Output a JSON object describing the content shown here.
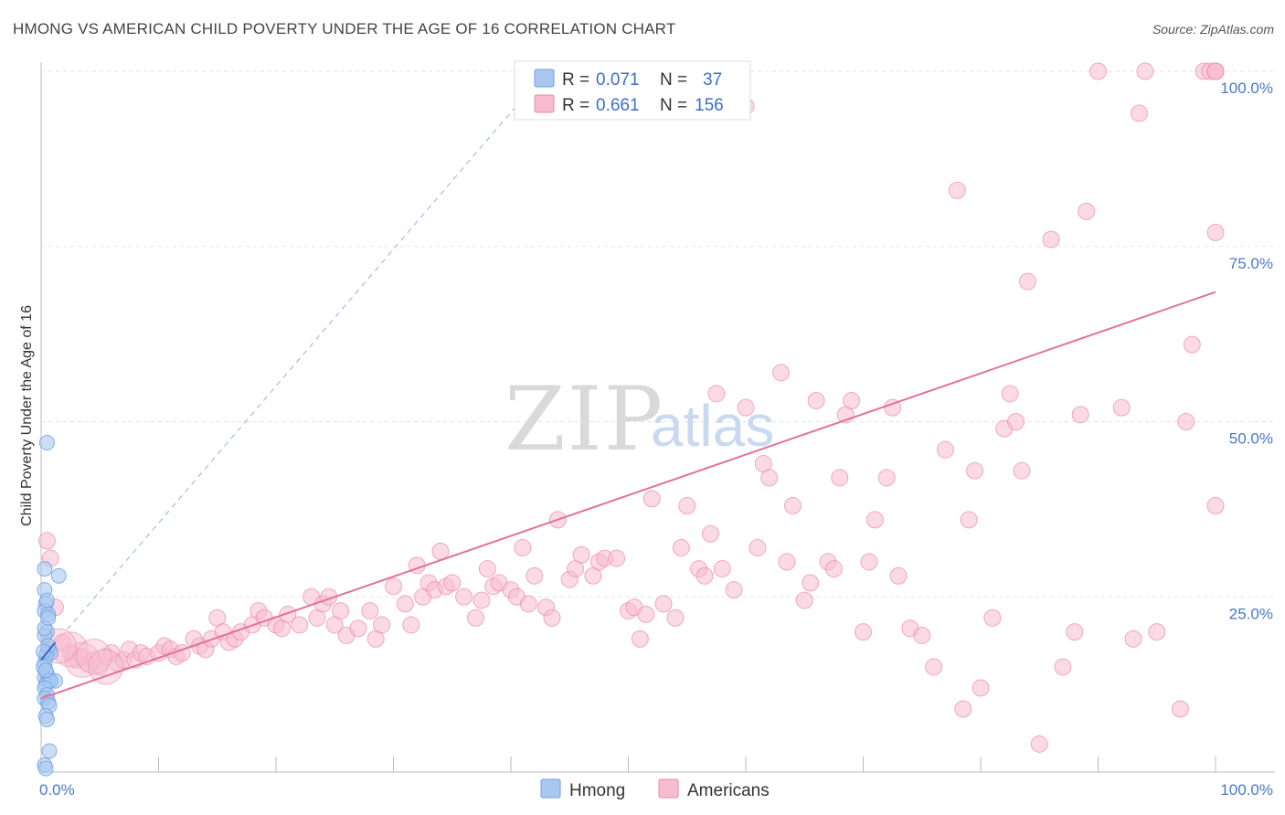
{
  "title": "HMONG VS AMERICAN CHILD POVERTY UNDER THE AGE OF 16 CORRELATION CHART",
  "source": "Source: ZipAtlas.com",
  "watermark": {
    "zip": "ZIP",
    "atlas": "atlas"
  },
  "legend": {
    "r_label": "R =",
    "n_label": "N =",
    "rows": [
      {
        "r": "0.071",
        "n": "37",
        "color": "#a9c8f0",
        "border": "#6f9ee0"
      },
      {
        "r": "0.661",
        "n": "156",
        "color": "#f7bcd0",
        "border": "#e98aa9"
      }
    ]
  },
  "bottom_legend": [
    {
      "label": "Hmong",
      "color": "#a9c8f0",
      "border": "#6f9ee0"
    },
    {
      "label": "Americans",
      "color": "#f7bcd0",
      "border": "#e98aa9"
    }
  ],
  "chart_data": {
    "type": "scatter",
    "title": "HMONG VS AMERICAN CHILD POVERTY UNDER THE AGE OF 16 CORRELATION CHART",
    "xlabel": "",
    "ylabel": "Child Poverty Under the Age of 16",
    "xlim": [
      0,
      100
    ],
    "ylim": [
      0,
      100
    ],
    "x_tick_labels": [
      {
        "value": 0,
        "label": "0.0%"
      },
      {
        "value": 100,
        "label": "100.0%"
      }
    ],
    "y_tick_labels": [
      {
        "value": 25,
        "label": "25.0%"
      },
      {
        "value": 50,
        "label": "50.0%"
      },
      {
        "value": 75,
        "label": "75.0%"
      },
      {
        "value": 100,
        "label": "100.0%"
      }
    ],
    "grid": true,
    "series": [
      {
        "name": "Hmong",
        "color": "#a9c8f0",
        "stroke": "#6f9ee0",
        "r": 0.071,
        "n": 37,
        "trend": {
          "x": [
            0,
            1.2
          ],
          "y": [
            16,
            18.5
          ],
          "color": "#3a66c8"
        },
        "trend_ext": {
          "x": [
            0,
            43
          ],
          "y": [
            16,
            100
          ],
          "color": "#8fb2e6"
        },
        "points": [
          [
            0.5,
            47
          ],
          [
            1.5,
            28
          ],
          [
            0.3,
            29
          ],
          [
            0.3,
            26
          ],
          [
            0.4,
            24
          ],
          [
            0.3,
            23
          ],
          [
            0.6,
            22.5
          ],
          [
            0.5,
            20
          ],
          [
            0.3,
            19.5
          ],
          [
            0.7,
            17.5
          ],
          [
            0.5,
            17
          ],
          [
            0.8,
            17
          ],
          [
            0.4,
            16.5
          ],
          [
            0.3,
            15.5
          ],
          [
            0.5,
            14
          ],
          [
            0.3,
            13.5
          ],
          [
            1.2,
            13
          ],
          [
            0.6,
            13
          ],
          [
            0.4,
            12.5
          ],
          [
            0.8,
            13
          ],
          [
            0.3,
            12
          ],
          [
            0.5,
            11
          ],
          [
            0.3,
            10.5
          ],
          [
            0.6,
            10
          ],
          [
            0.7,
            9.5
          ],
          [
            0.4,
            8
          ],
          [
            0.5,
            7.5
          ],
          [
            0.7,
            3
          ],
          [
            0.3,
            1
          ],
          [
            0.4,
            0.5
          ],
          [
            0.6,
            18
          ],
          [
            0.2,
            15
          ],
          [
            0.4,
            14.5
          ],
          [
            0.3,
            20.5
          ],
          [
            0.6,
            22
          ],
          [
            0.5,
            24.5
          ],
          [
            0.2,
            17.2
          ]
        ]
      },
      {
        "name": "Americans",
        "color": "#f7bcd0",
        "stroke": "#e98aa9",
        "r": 0.661,
        "n": 156,
        "trend": {
          "x": [
            0,
            100
          ],
          "y": [
            10.5,
            68.5
          ],
          "color": "#e2719b"
        },
        "points": [
          [
            0.5,
            33
          ],
          [
            0.8,
            30.5
          ],
          [
            1.2,
            23.5
          ],
          [
            1.8,
            18.5
          ],
          [
            2.5,
            17
          ],
          [
            3,
            16
          ],
          [
            3.5,
            16.5
          ],
          [
            4,
            15.5
          ],
          [
            4.5,
            16
          ],
          [
            5,
            15
          ],
          [
            5.5,
            16.5
          ],
          [
            6,
            17
          ],
          [
            6.5,
            15.5
          ],
          [
            7,
            16
          ],
          [
            7.5,
            17.5
          ],
          [
            8,
            16
          ],
          [
            8.5,
            17
          ],
          [
            9,
            16.5
          ],
          [
            10,
            17
          ],
          [
            10.5,
            18
          ],
          [
            11,
            17.5
          ],
          [
            11.5,
            16.5
          ],
          [
            12,
            17
          ],
          [
            13,
            19
          ],
          [
            13.5,
            18
          ],
          [
            14,
            17.5
          ],
          [
            14.5,
            19
          ],
          [
            15,
            22
          ],
          [
            15.5,
            20
          ],
          [
            16,
            18.5
          ],
          [
            16.5,
            19
          ],
          [
            17,
            20
          ],
          [
            18,
            21
          ],
          [
            18.5,
            23
          ],
          [
            19,
            22
          ],
          [
            20,
            21
          ],
          [
            20.5,
            20.5
          ],
          [
            21,
            22.5
          ],
          [
            22,
            21
          ],
          [
            23,
            25
          ],
          [
            23.5,
            22
          ],
          [
            24,
            24
          ],
          [
            24.5,
            25
          ],
          [
            25,
            21
          ],
          [
            25.5,
            23
          ],
          [
            26,
            19.5
          ],
          [
            27,
            20.5
          ],
          [
            28,
            23
          ],
          [
            28.5,
            19
          ],
          [
            29,
            21
          ],
          [
            30,
            26.5
          ],
          [
            31,
            24
          ],
          [
            31.5,
            21
          ],
          [
            32,
            29.5
          ],
          [
            32.5,
            25
          ],
          [
            33,
            27
          ],
          [
            33.5,
            26
          ],
          [
            34,
            31.5
          ],
          [
            34.5,
            26.5
          ],
          [
            35,
            27
          ],
          [
            36,
            25
          ],
          [
            37,
            22
          ],
          [
            37.5,
            24.5
          ],
          [
            38,
            29
          ],
          [
            38.5,
            26.5
          ],
          [
            39,
            27
          ],
          [
            40,
            26
          ],
          [
            40.5,
            25
          ],
          [
            41,
            32
          ],
          [
            41.5,
            24
          ],
          [
            42,
            28
          ],
          [
            43,
            23.5
          ],
          [
            43.5,
            22
          ],
          [
            44,
            36
          ],
          [
            45,
            27.5
          ],
          [
            45.5,
            29
          ],
          [
            46,
            31
          ],
          [
            47,
            28
          ],
          [
            47.5,
            30
          ],
          [
            48,
            30.5
          ],
          [
            49,
            30.5
          ],
          [
            50,
            23
          ],
          [
            50.5,
            23.5
          ],
          [
            51,
            19
          ],
          [
            51.5,
            22.5
          ],
          [
            52,
            39
          ],
          [
            53,
            24
          ],
          [
            54,
            22
          ],
          [
            54.5,
            32
          ],
          [
            55,
            38
          ],
          [
            56,
            29
          ],
          [
            56.5,
            28
          ],
          [
            57,
            34
          ],
          [
            57.5,
            54
          ],
          [
            58,
            29
          ],
          [
            59,
            26
          ],
          [
            60,
            52
          ],
          [
            61,
            32
          ],
          [
            61.5,
            44
          ],
          [
            62,
            42
          ],
          [
            63,
            57
          ],
          [
            63.5,
            30
          ],
          [
            64,
            38
          ],
          [
            65,
            24.5
          ],
          [
            65.5,
            27
          ],
          [
            66,
            53
          ],
          [
            67,
            30
          ],
          [
            67.5,
            29
          ],
          [
            68,
            42
          ],
          [
            68.5,
            51
          ],
          [
            69,
            53
          ],
          [
            70,
            20
          ],
          [
            70.5,
            30
          ],
          [
            71,
            36
          ],
          [
            72,
            42
          ],
          [
            72.5,
            52
          ],
          [
            73,
            28
          ],
          [
            74,
            20.5
          ],
          [
            75,
            19.5
          ],
          [
            76,
            15
          ],
          [
            77,
            46
          ],
          [
            78,
            83
          ],
          [
            78.5,
            9
          ],
          [
            79,
            36
          ],
          [
            79.5,
            43
          ],
          [
            80,
            12
          ],
          [
            81,
            22
          ],
          [
            82,
            49
          ],
          [
            82.5,
            54
          ],
          [
            83,
            50
          ],
          [
            83.5,
            43
          ],
          [
            84,
            70
          ],
          [
            85,
            4
          ],
          [
            86,
            76
          ],
          [
            87,
            15
          ],
          [
            88,
            20
          ],
          [
            88.5,
            51
          ],
          [
            89,
            80
          ],
          [
            90,
            100
          ],
          [
            92,
            52
          ],
          [
            93,
            19
          ],
          [
            93.5,
            94
          ],
          [
            94,
            100
          ],
          [
            95,
            20
          ],
          [
            97,
            9
          ],
          [
            97.5,
            50
          ],
          [
            98,
            61
          ],
          [
            99,
            100
          ],
          [
            99.5,
            100
          ],
          [
            100,
            38
          ],
          [
            100,
            77
          ],
          [
            100,
            100
          ],
          [
            100,
            100
          ],
          [
            100,
            100
          ],
          [
            60,
            95
          ]
        ],
        "big_points": [
          [
            2.5,
            17.5
          ],
          [
            3.5,
            16
          ],
          [
            4.5,
            16.5
          ],
          [
            5.5,
            15
          ],
          [
            1.5,
            18
          ]
        ]
      }
    ]
  }
}
